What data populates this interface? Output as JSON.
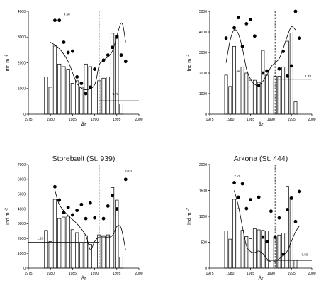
{
  "chart_data": [
    {
      "type": "bar",
      "title": "",
      "xlabel": "År",
      "ylabel": "Ind m",
      "ylabel_sup": "-2",
      "xlim": [
        1975,
        2000
      ],
      "ylim": [
        0,
        4000
      ],
      "x_ticks": [
        "1975",
        "1980",
        "1985",
        "1990",
        "1995",
        "2000"
      ],
      "y_ticks": [
        "0",
        "1000",
        "2000",
        "3000",
        "4000"
      ],
      "bars": {
        "x": [
          1979,
          1980,
          1981,
          1982,
          1983,
          1984,
          1985,
          1986,
          1987,
          1988,
          1989,
          1991,
          1992,
          1993,
          1994,
          1995,
          1996
        ],
        "values": [
          1450,
          1050,
          2650,
          1950,
          1850,
          1750,
          1200,
          1300,
          1050,
          1950,
          1850,
          1300,
          1400,
          1450,
          3150,
          3050,
          400
        ]
      },
      "points": {
        "x": [
          1981,
          1982,
          1983,
          1984,
          1985,
          1986,
          1987,
          1988,
          1989,
          1990,
          1992,
          1993,
          1994,
          1995,
          1996,
          1997
        ],
        "values": [
          3650,
          3650,
          2800,
          2400,
          2450,
          1450,
          1200,
          800,
          1050,
          1750,
          2100,
          2300,
          2600,
          3000,
          2300,
          2050
        ]
      },
      "trend": {
        "x": [
          1980,
          1982,
          1984,
          1986,
          1988,
          1990,
          1991,
          1992,
          1994,
          1996,
          1997
        ],
        "values": [
          2800,
          2550,
          2050,
          1200,
          950,
          1150,
          1900,
          2100,
          2450,
          3550,
          2800
        ]
      },
      "shift_year": 1991,
      "level_line": {
        "from": 1991,
        "to": 2000,
        "value": 520
      },
      "annotations": [
        {
          "text": "4.58",
          "x": 1983,
          "y": 3850
        },
        {
          "text": "0.73",
          "x": 1994,
          "y": 750
        }
      ]
    },
    {
      "type": "bar",
      "title": "",
      "xlabel": "År",
      "ylabel": "Ind m",
      "ylabel_sup": "-2",
      "xlim": [
        1975,
        2000
      ],
      "ylim": [
        0,
        5000
      ],
      "x_ticks": [
        "1975",
        "1980",
        "1985",
        "1990",
        "1995",
        "2000"
      ],
      "y_ticks": [
        "0",
        "1000",
        "2000",
        "3000",
        "4000",
        "5000"
      ],
      "bars": {
        "x": [
          1979,
          1980,
          1981,
          1982,
          1983,
          1984,
          1985,
          1986,
          1987,
          1988,
          1989,
          1991,
          1992,
          1993,
          1994,
          1995,
          1996
        ],
        "values": [
          1900,
          1350,
          3300,
          2100,
          2300,
          2000,
          1650,
          1650,
          1550,
          3100,
          1900,
          1850,
          1850,
          2300,
          3550,
          3950,
          600
        ]
      },
      "points": {
        "x": [
          1979,
          1981,
          1982,
          1983,
          1984,
          1985,
          1986,
          1987,
          1988,
          1989,
          1992,
          1993,
          1994,
          1995,
          1996,
          1997
        ],
        "values": [
          3700,
          4200,
          4700,
          3300,
          4400,
          4600,
          3800,
          1400,
          2000,
          2100,
          2200,
          3050,
          1850,
          2350,
          5000,
          3700
        ]
      },
      "trend": {
        "x": [
          1979,
          1980,
          1981,
          1982,
          1983,
          1984,
          1985,
          1986,
          1987,
          1988,
          1989,
          1990,
          1991,
          1992,
          1993,
          1994,
          1995,
          1996
        ],
        "values": [
          2500,
          3600,
          4100,
          3900,
          3200,
          2200,
          1700,
          1450,
          1400,
          1600,
          1900,
          2300,
          2500,
          2700,
          3200,
          3800,
          4250,
          4100
        ]
      },
      "shift_year": 1991,
      "level_line": {
        "from": 1991,
        "to": 2000,
        "value": 1700
      },
      "annotations": [
        {
          "text": "1.78",
          "x": 1998.3,
          "y": 1800
        }
      ]
    },
    {
      "type": "bar",
      "title": "Storebælt (St. 939)",
      "xlabel": "År",
      "ylabel": "Ind m",
      "ylabel_sup": "-2",
      "xlim": [
        1975,
        2000
      ],
      "ylim": [
        0,
        7000
      ],
      "x_ticks": [
        "1975",
        "1980",
        "1985",
        "1990",
        "1995",
        "2000"
      ],
      "y_ticks": [
        "0",
        "1000",
        "2000",
        "3000",
        "4000",
        "5000",
        "6000",
        "7000"
      ],
      "bars": {
        "x": [
          1979,
          1980,
          1981,
          1982,
          1983,
          1984,
          1985,
          1986,
          1987,
          1988,
          1989,
          1991,
          1992,
          1993,
          1994,
          1995,
          1996
        ],
        "values": [
          2550,
          1800,
          4650,
          3350,
          3450,
          3500,
          2600,
          2400,
          1700,
          2200,
          1600,
          2250,
          2200,
          2250,
          5450,
          4600,
          750
        ]
      },
      "points": {
        "x": [
          1981,
          1982,
          1983,
          1984,
          1985,
          1986,
          1987,
          1988,
          1989,
          1990,
          1992,
          1993,
          1994,
          1995,
          1997
        ],
        "values": [
          5500,
          4600,
          3750,
          4100,
          3600,
          3900,
          4300,
          3350,
          4400,
          3400,
          3350,
          4200,
          4900,
          4000,
          6000
        ]
      },
      "trend": {
        "x": [
          1981,
          1982,
          1984,
          1986,
          1988,
          1989,
          1990,
          1991,
          1993,
          1994,
          1995,
          1996,
          1997
        ],
        "values": [
          5300,
          4300,
          3550,
          3000,
          2200,
          1250,
          1800,
          2100,
          2100,
          2200,
          2800,
          2700,
          1200
        ]
      },
      "shift_year": 1991,
      "level_line": {
        "from": 1975,
        "to": 1991,
        "value": 1750
      },
      "annotations": [
        {
          "text": "1.20",
          "x": 1977,
          "y": 1950
        },
        {
          "text": "6.03",
          "x": 1997,
          "y": 6500
        }
      ]
    },
    {
      "type": "bar",
      "title": "Arkona (St. 444)",
      "xlabel": "År",
      "ylabel": "Ind m",
      "ylabel_sup": "-2",
      "xlim": [
        1975,
        2000
      ],
      "ylim": [
        0,
        2000
      ],
      "x_ticks": [
        "1975",
        "1980",
        "1985",
        "1990",
        "1995",
        "2000"
      ],
      "y_ticks": [
        "0",
        "500",
        "1000",
        "1500",
        "2000"
      ],
      "bars": {
        "x": [
          1979,
          1980,
          1981,
          1982,
          1983,
          1984,
          1985,
          1986,
          1987,
          1988,
          1989,
          1991,
          1992,
          1993,
          1994,
          1995,
          1996
        ],
        "values": [
          720,
          560,
          1330,
          1150,
          730,
          610,
          570,
          760,
          740,
          730,
          720,
          600,
          640,
          680,
          1580,
          1370,
          160
        ]
      },
      "points": {
        "x": [
          1981,
          1982,
          1983,
          1984,
          1985,
          1987,
          1988,
          1989,
          1990,
          1991,
          1992,
          1993,
          1994,
          1995,
          1996,
          1997
        ],
        "values": [
          1650,
          1370,
          1630,
          1150,
          1320,
          1370,
          600,
          510,
          1100,
          600,
          970,
          270,
          1130,
          1350,
          900,
          1480
        ]
      },
      "trend": {
        "x": [
          1981,
          1982,
          1983,
          1984,
          1985,
          1986,
          1987,
          1988,
          1989,
          1990,
          1991,
          1992,
          1993,
          1994,
          1995,
          1996,
          1997
        ],
        "values": [
          1500,
          1200,
          800,
          430,
          320,
          300,
          330,
          280,
          180,
          120,
          130,
          180,
          250,
          330,
          520,
          700,
          820
        ]
      },
      "shift_year": 1991,
      "level_line": {
        "from": 1989,
        "to": 2000,
        "value": 150
      },
      "annotations": [
        {
          "text": "2.20",
          "x": 1981,
          "y": 1760
        },
        {
          "text": "0.50",
          "x": 1997.5,
          "y": 240
        }
      ]
    }
  ]
}
